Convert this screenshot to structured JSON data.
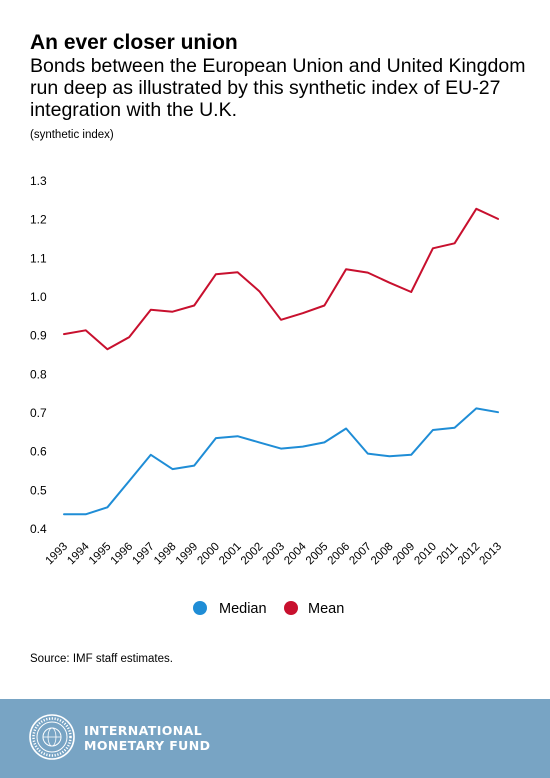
{
  "header": {
    "title": "An ever closer union",
    "subtitle": "Bonds between the European Union and United Kingdom run deep as illustrated by this synthetic index of EU-27 integration with the U.K.",
    "unit_label": "(synthetic index)"
  },
  "footer": {
    "source": "Source: IMF staff estimates.",
    "org_line1": "INTERNATIONAL",
    "org_line2": "MONETARY FUND",
    "background_color": "#78a4c4",
    "logo_icon": "imf-seal-icon"
  },
  "chart_data": {
    "type": "line",
    "title": "An ever closer union",
    "subtitle": "Bonds between the European Union and United Kingdom run deep as illustrated by this synthetic index of EU-27 integration with the U.K.",
    "ylabel": "(synthetic index)",
    "xlabel": "",
    "x": [
      "1993",
      "1994",
      "1995",
      "1996",
      "1997",
      "1998",
      "1999",
      "2000",
      "2001",
      "2002",
      "2003",
      "2004",
      "2005",
      "2006",
      "2007",
      "2008",
      "2009",
      "2010",
      "2011",
      "2012",
      "2013"
    ],
    "ylim": [
      0.4,
      1.3
    ],
    "yticks": [
      "0.4",
      "0.5",
      "0.6",
      "0.7",
      "0.8",
      "0.9",
      "1.0",
      "1.1",
      "1.2",
      "1.3"
    ],
    "grid": false,
    "legend_position": "bottom",
    "series": [
      {
        "name": "Median",
        "color": "#1f8dd6",
        "values": [
          0.438,
          0.438,
          0.456,
          0.524,
          0.592,
          0.555,
          0.564,
          0.635,
          0.64,
          0.624,
          0.608,
          0.613,
          0.624,
          0.66,
          0.595,
          0.588,
          0.592,
          0.656,
          0.662,
          0.712,
          0.702
        ]
      },
      {
        "name": "Mean",
        "color": "#c8102e",
        "values": [
          0.904,
          0.914,
          0.865,
          0.896,
          0.967,
          0.962,
          0.978,
          1.059,
          1.064,
          1.015,
          0.941,
          0.958,
          0.978,
          1.072,
          1.063,
          1.037,
          1.013,
          1.126,
          1.139,
          1.228,
          1.202
        ]
      }
    ]
  }
}
